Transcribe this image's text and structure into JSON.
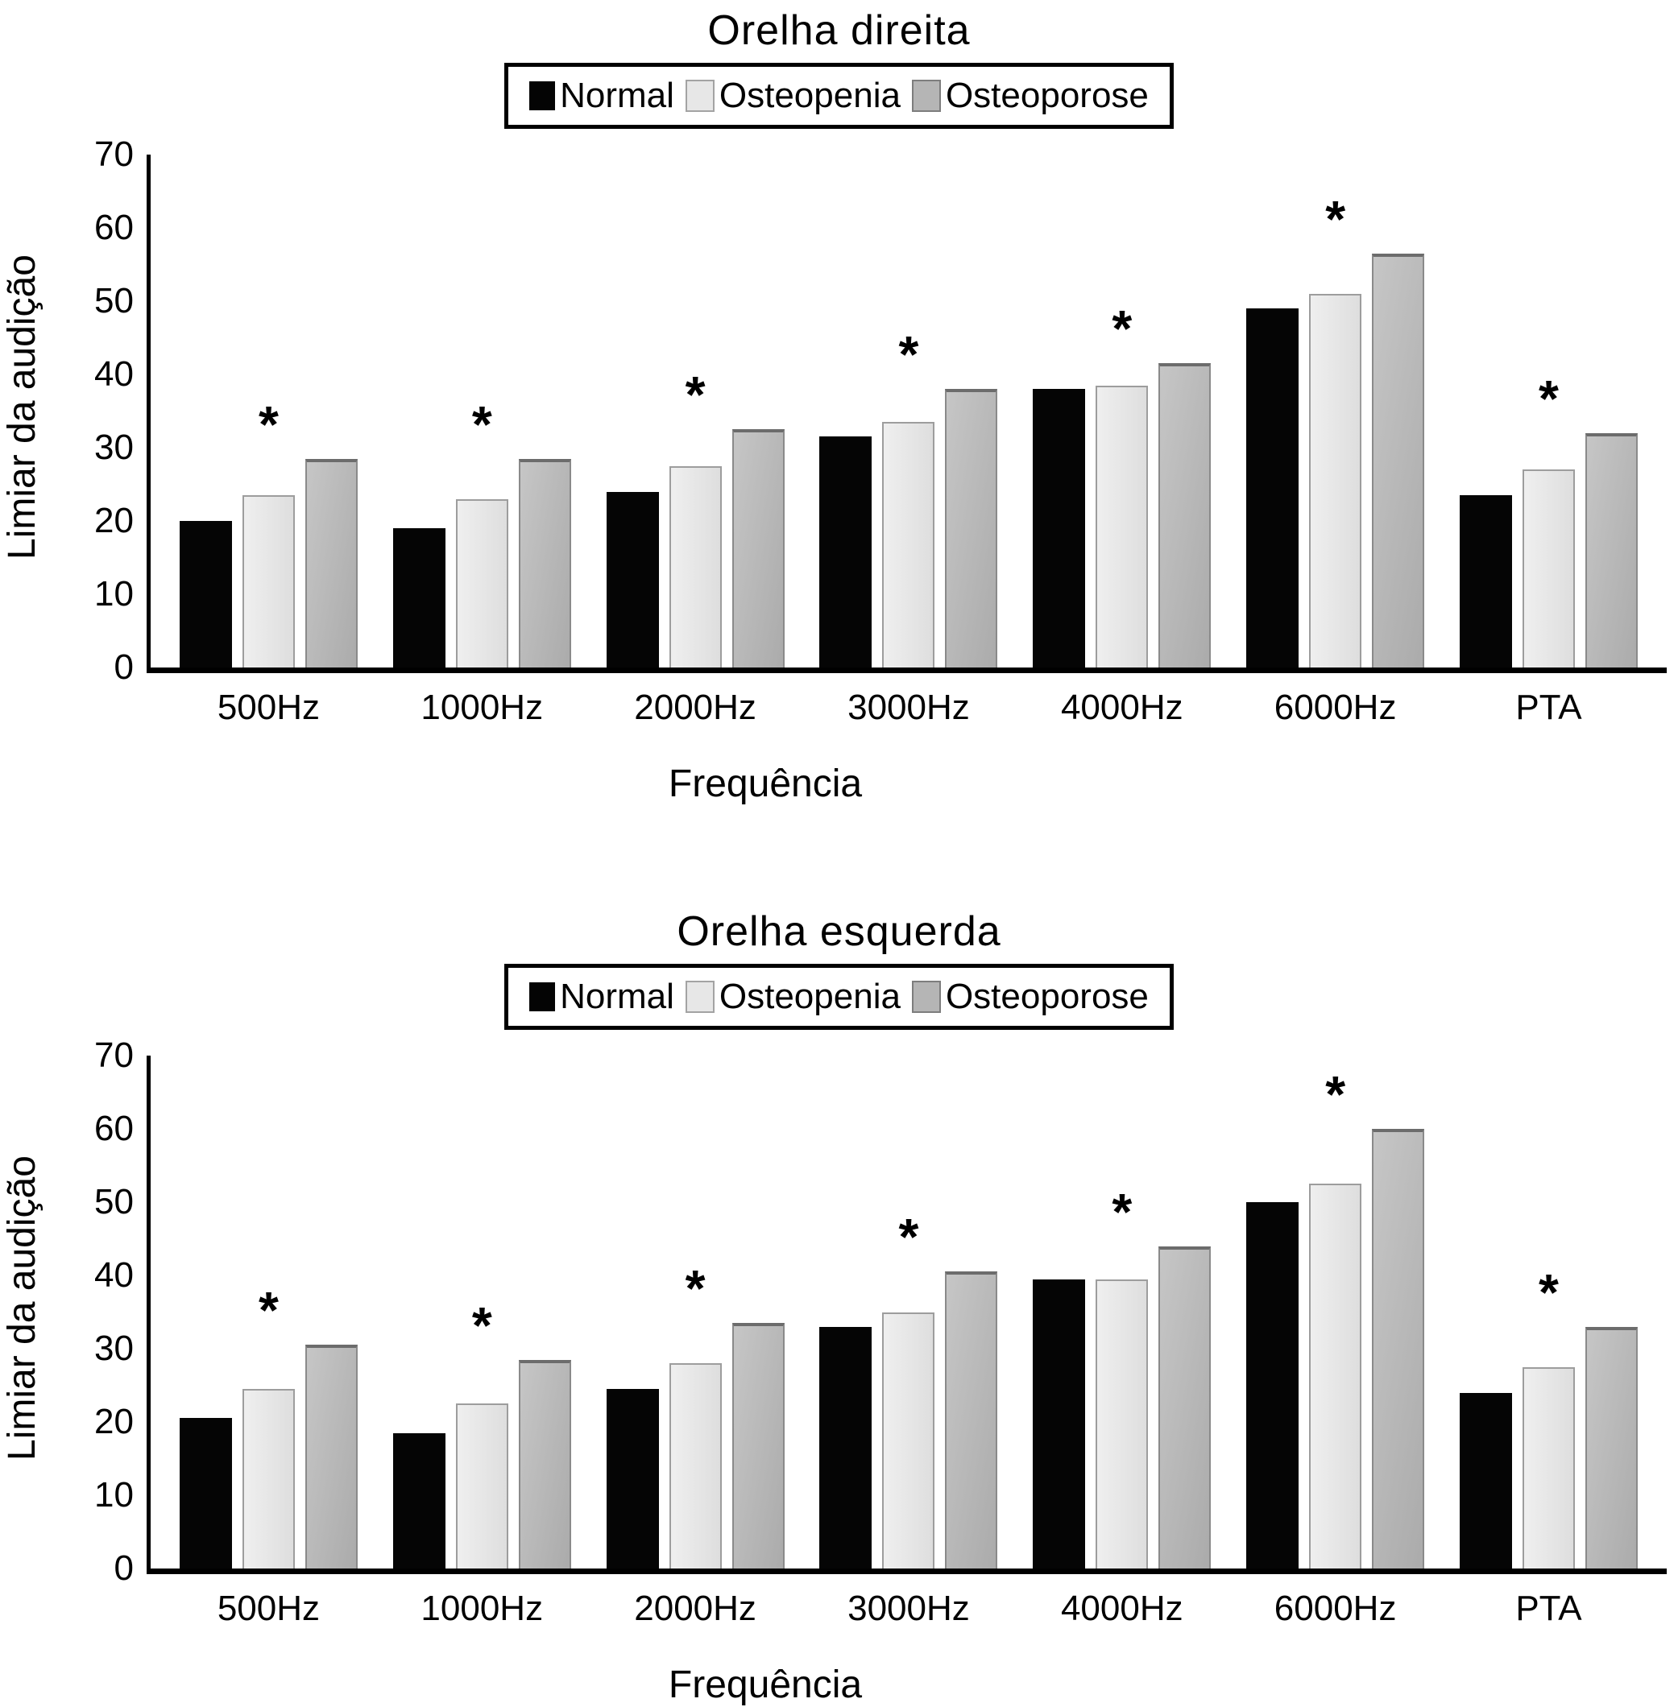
{
  "chart_data": [
    {
      "type": "bar",
      "title": "Orelha direita",
      "ylabel": "Limiar da audição",
      "xlabel": "Frequência",
      "legend_position": "top",
      "grid": false,
      "ylim": [
        0,
        70
      ],
      "yticks": [
        0,
        10,
        20,
        30,
        40,
        50,
        60,
        70
      ],
      "categories": [
        "500Hz",
        "1000Hz",
        "2000Hz",
        "3000Hz",
        "4000Hz",
        "6000Hz",
        "PTA"
      ],
      "series": [
        {
          "key": "normal",
          "name": "Normal",
          "values": [
            20,
            19,
            24,
            31.5,
            38,
            49,
            23.5
          ]
        },
        {
          "key": "osteopenia",
          "name": "Osteopenia",
          "values": [
            23.5,
            23,
            27.5,
            33.5,
            38.5,
            51,
            27
          ]
        },
        {
          "key": "osteoporose",
          "name": "Osteoporose",
          "values": [
            28.5,
            28.5,
            32.5,
            38,
            41.5,
            56.5,
            32
          ]
        }
      ],
      "significance": {
        "marker": "*",
        "per_category": [
          true,
          true,
          true,
          true,
          true,
          true,
          true
        ]
      }
    },
    {
      "type": "bar",
      "title": "Orelha esquerda",
      "ylabel": "Limiar da audição",
      "xlabel": "Frequência",
      "legend_position": "top",
      "grid": false,
      "ylim": [
        0,
        70
      ],
      "yticks": [
        0,
        10,
        20,
        30,
        40,
        50,
        60,
        70
      ],
      "categories": [
        "500Hz",
        "1000Hz",
        "2000Hz",
        "3000Hz",
        "4000Hz",
        "6000Hz",
        "PTA"
      ],
      "series": [
        {
          "key": "normal",
          "name": "Normal",
          "values": [
            20.5,
            18.5,
            24.5,
            33,
            39.5,
            50,
            24
          ]
        },
        {
          "key": "osteopenia",
          "name": "Osteopenia",
          "values": [
            24.5,
            22.5,
            28,
            35,
            39.5,
            52.5,
            27.5
          ]
        },
        {
          "key": "osteoporose",
          "name": "Osteoporose",
          "values": [
            30.5,
            28.5,
            33.5,
            40.5,
            44,
            60,
            33
          ]
        }
      ],
      "significance": {
        "marker": "*",
        "per_category": [
          true,
          true,
          true,
          true,
          true,
          true,
          true
        ]
      }
    }
  ],
  "colors": {
    "normal": "#050505",
    "osteopenia": "#e7e7e7",
    "osteoporose": "#b5b5b5",
    "axis": "#000000",
    "background": "#ffffff"
  }
}
